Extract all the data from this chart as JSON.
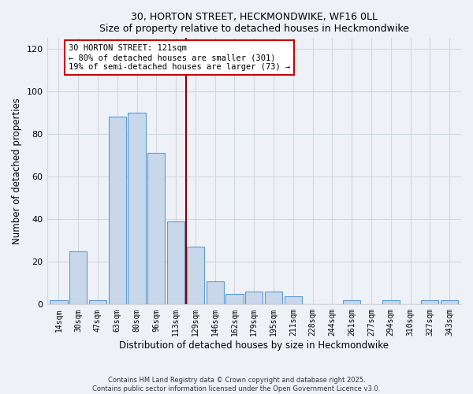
{
  "title": "30, HORTON STREET, HECKMONDWIKE, WF16 0LL",
  "subtitle": "Size of property relative to detached houses in Heckmondwike",
  "xlabel": "Distribution of detached houses by size in Heckmondwike",
  "ylabel": "Number of detached properties",
  "bin_labels": [
    "14sqm",
    "30sqm",
    "47sqm",
    "63sqm",
    "80sqm",
    "96sqm",
    "113sqm",
    "129sqm",
    "146sqm",
    "162sqm",
    "179sqm",
    "195sqm",
    "211sqm",
    "228sqm",
    "244sqm",
    "261sqm",
    "277sqm",
    "294sqm",
    "310sqm",
    "327sqm",
    "343sqm"
  ],
  "bar_heights": [
    2,
    25,
    2,
    88,
    90,
    71,
    39,
    27,
    11,
    5,
    6,
    6,
    4,
    0,
    0,
    2,
    0,
    2,
    0,
    2,
    2
  ],
  "bar_color": "#c8d8ea",
  "bar_edge_color": "#5b9bd5",
  "vline_color": "#8b0000",
  "annotation_text": "30 HORTON STREET: 121sqm\n← 80% of detached houses are smaller (301)\n19% of semi-detached houses are larger (73) →",
  "annotation_box_color": "#ffffff",
  "annotation_box_edge": "#cc0000",
  "ylim": [
    0,
    125
  ],
  "yticks": [
    0,
    20,
    40,
    60,
    80,
    100,
    120
  ],
  "background_color": "#eef2f7",
  "plot_bg_color": "#eef2f7",
  "grid_color": "#d0d8e0",
  "footer_line1": "Contains HM Land Registry data © Crown copyright and database right 2025.",
  "footer_line2": "Contains public sector information licensed under the Open Government Licence v3.0."
}
